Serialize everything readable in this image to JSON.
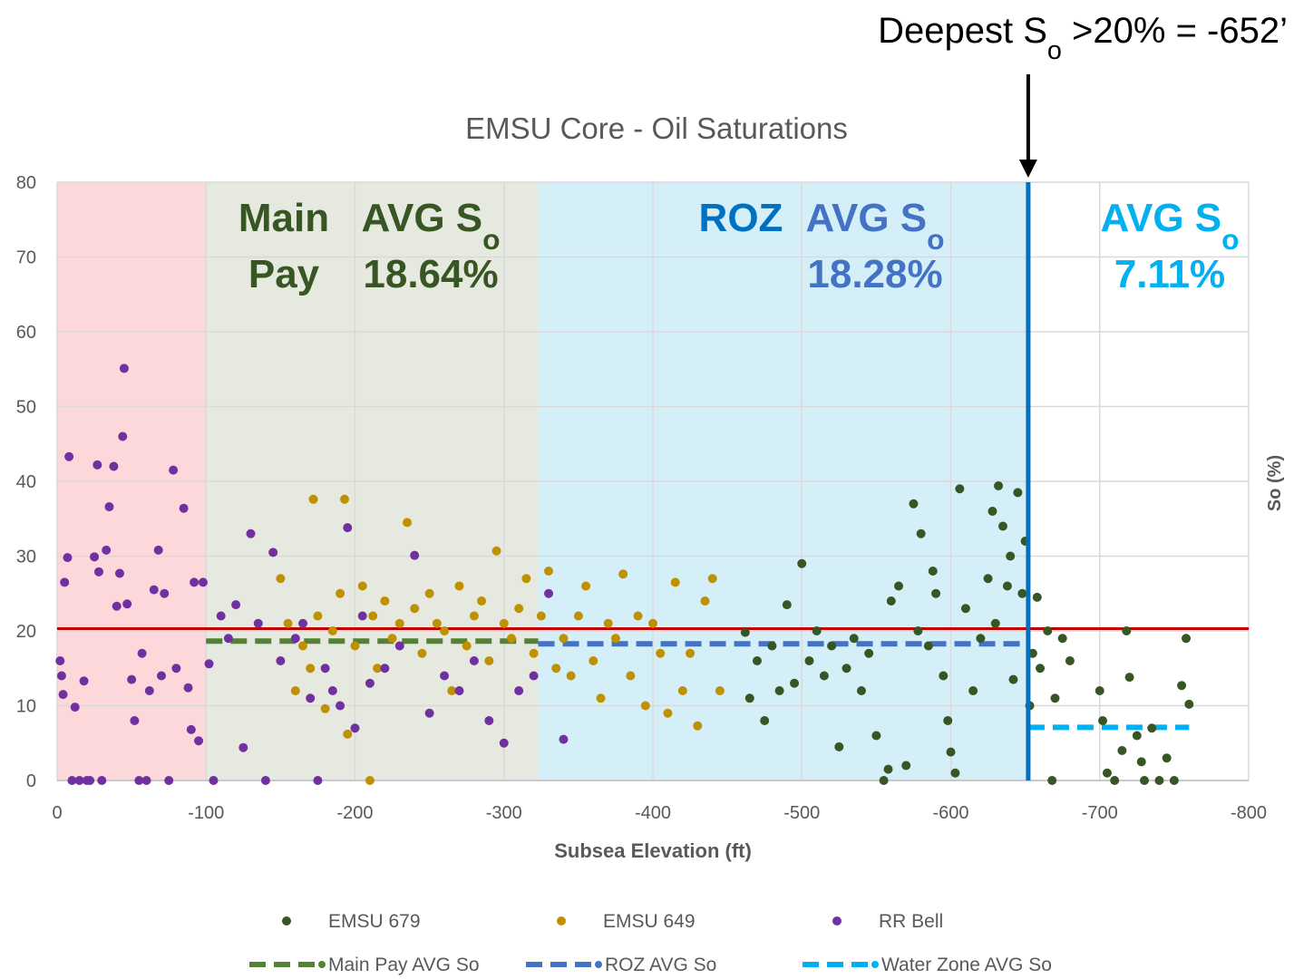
{
  "chart_data": {
    "type": "scatter",
    "title": "EMSU Core - Oil Saturations",
    "x_label": "Subsea Elevation (ft)",
    "y_label": "So (%)",
    "xlim": [
      0,
      -800
    ],
    "xticks": [
      0,
      -100,
      -200,
      -300,
      -400,
      -500,
      -600,
      -700,
      -800
    ],
    "ylim": [
      0,
      80
    ],
    "yticks": [
      0,
      10,
      20,
      30,
      40,
      50,
      60,
      70,
      80
    ],
    "grid": true,
    "zones": [
      {
        "xlim": [
          0,
          -100
        ],
        "color": "#fdd8db"
      },
      {
        "xlim": [
          -100,
          -323
        ],
        "color": "#e6e9df"
      },
      {
        "xlim": [
          -323,
          -652
        ],
        "color": "#d5eff9"
      }
    ],
    "threshold": 20.3,
    "threshold_color": "#c00000",
    "deepest_x": -652,
    "deepest_color": "#0070c0",
    "deepest_annotation": {
      "text": "Deepest S",
      "sub": "o",
      "after": " >20% = -652’"
    },
    "annotations": [
      {
        "text": "Main",
        "color": "#375623"
      },
      {
        "text": "Pay",
        "color": "#375623"
      },
      {
        "text": "AVG S",
        "sub": "o",
        "color": "#375623"
      },
      {
        "text": "18.64%",
        "color": "#375623"
      },
      {
        "text": "ROZ",
        "color": "#0070c0"
      },
      {
        "text": "AVG S",
        "sub": "o",
        "color": "#4472c4"
      },
      {
        "text": "18.28%",
        "color": "#4472c4"
      },
      {
        "text": "AVG S",
        "sub": "o",
        "color": "#00b0f0"
      },
      {
        "text": "7.11%",
        "color": "#00b0f0"
      }
    ],
    "series": [
      {
        "name": "EMSU 679",
        "color": "#375623",
        "x": [
          -462,
          -465,
          -470,
          -475,
          -480,
          -485,
          -490,
          -495,
          -500,
          -505,
          -510,
          -515,
          -520,
          -525,
          -530,
          -535,
          -540,
          -545,
          -550,
          -555,
          -558,
          -560,
          -565,
          -570,
          -575,
          -578,
          -580,
          -585,
          -588,
          -590,
          -595,
          -598,
          -600,
          -603,
          -606,
          -610,
          -615,
          -620,
          -625,
          -628,
          -630,
          -632,
          -635,
          -638,
          -640,
          -642,
          -645,
          -648,
          -650,
          -653,
          -655,
          -658,
          -660,
          -665,
          -668,
          -670,
          -675,
          -680,
          -700,
          -702,
          -705,
          -710,
          -715,
          -718,
          -720,
          -725,
          -728,
          -730,
          -735,
          -740,
          -745,
          -750,
          -755,
          -758,
          -760
        ],
        "values": [
          19.8,
          11,
          16,
          8,
          18,
          12,
          23.5,
          13,
          29,
          16,
          20,
          14,
          18,
          4.5,
          15,
          19,
          12,
          17,
          6,
          0,
          1.5,
          24,
          26,
          2,
          37,
          20,
          33,
          18,
          28,
          25,
          14,
          8,
          3.8,
          1,
          39,
          23,
          12,
          19,
          27,
          36,
          21,
          39.4,
          34,
          26,
          30,
          13.5,
          38.5,
          25,
          32,
          10,
          17,
          24.5,
          15,
          20,
          0,
          11,
          19,
          16,
          12,
          8,
          1,
          0,
          4,
          20,
          13.8,
          6,
          2.5,
          0,
          7,
          0,
          3,
          0,
          12.7,
          19,
          10.2
        ]
      },
      {
        "name": "EMSU 649",
        "color": "#bf9000",
        "x": [
          -150,
          -155,
          -160,
          -165,
          -170,
          -172,
          -175,
          -180,
          -185,
          -190,
          -193,
          -195,
          -200,
          -205,
          -210,
          -212,
          -215,
          -220,
          -225,
          -230,
          -235,
          -240,
          -245,
          -250,
          -255,
          -260,
          -265,
          -270,
          -275,
          -280,
          -285,
          -290,
          -295,
          -300,
          -305,
          -310,
          -315,
          -320,
          -325,
          -330,
          -335,
          -340,
          -345,
          -350,
          -355,
          -360,
          -365,
          -370,
          -375,
          -380,
          -385,
          -390,
          -395,
          -400,
          -405,
          -410,
          -415,
          -420,
          -425,
          -430,
          -435,
          -440,
          -445
        ],
        "values": [
          27,
          21,
          12,
          18,
          15,
          37.6,
          22,
          9.6,
          20,
          25,
          37.6,
          6.2,
          18,
          26,
          0,
          22,
          15,
          24,
          19,
          21,
          34.5,
          23,
          17,
          25,
          21,
          20,
          12,
          26,
          18,
          22,
          24,
          16,
          30.7,
          21,
          19,
          23,
          27,
          17,
          22,
          28,
          15,
          19,
          14,
          22,
          26,
          16,
          11,
          21,
          19,
          27.6,
          14,
          22,
          10,
          21,
          17,
          9,
          26.5,
          12,
          17,
          7.3,
          24,
          27,
          12
        ]
      },
      {
        "name": "RR Bell",
        "color": "#7030a0",
        "x": [
          -2,
          -3,
          -5,
          -4,
          -7,
          -8,
          -10,
          -12,
          -15,
          -18,
          -20,
          -22,
          -25,
          -27,
          -28,
          -30,
          -33,
          -35,
          -38,
          -40,
          -42,
          -45,
          -44,
          -47,
          -50,
          -52,
          -55,
          -57,
          -60,
          -62,
          -65,
          -68,
          -70,
          -72,
          -75,
          -78,
          -80,
          -85,
          -88,
          -90,
          -92,
          -95,
          -98,
          -102,
          -105,
          -110,
          -115,
          -120,
          -125,
          -130,
          -135,
          -140,
          -145,
          -150,
          -160,
          -165,
          -170,
          -175,
          -180,
          -185,
          -190,
          -195,
          -200,
          -205,
          -210,
          -220,
          -230,
          -240,
          -250,
          -260,
          -270,
          -280,
          -290,
          -300,
          -310,
          -320,
          -330,
          -340
        ],
        "values": [
          16,
          14,
          26.5,
          11.5,
          29.8,
          43.3,
          0,
          9.8,
          0,
          13.3,
          0,
          0,
          29.9,
          42.2,
          27.9,
          0,
          30.8,
          36.6,
          42,
          23.3,
          27.7,
          55.1,
          46,
          23.6,
          13.5,
          8,
          0,
          17,
          0,
          12,
          25.5,
          30.8,
          14,
          25,
          0,
          41.5,
          15,
          36.4,
          12.4,
          6.8,
          26.5,
          5.3,
          26.5,
          15.6,
          0,
          22,
          19,
          23.5,
          4.4,
          33,
          21,
          0,
          30.5,
          16,
          19,
          21,
          11,
          0,
          15,
          12,
          10,
          33.8,
          7,
          22,
          13,
          15,
          18,
          30.1,
          9,
          14,
          12,
          16,
          8,
          5,
          12,
          14,
          25,
          5.5
        ]
      }
    ],
    "reference_lines": [
      {
        "name": "Main Pay AVG So",
        "color": "#548235",
        "x": [
          -100,
          -323
        ],
        "values": [
          18.64,
          18.64
        ]
      },
      {
        "name": "ROZ AVG So",
        "color": "#4472c4",
        "x": [
          -323,
          -652
        ],
        "values": [
          18.28,
          18.28
        ]
      },
      {
        "name": "Water Zone AVG So",
        "color": "#00b0f0",
        "x": [
          -652,
          -760
        ],
        "values": [
          7.11,
          7.11
        ]
      }
    ]
  }
}
